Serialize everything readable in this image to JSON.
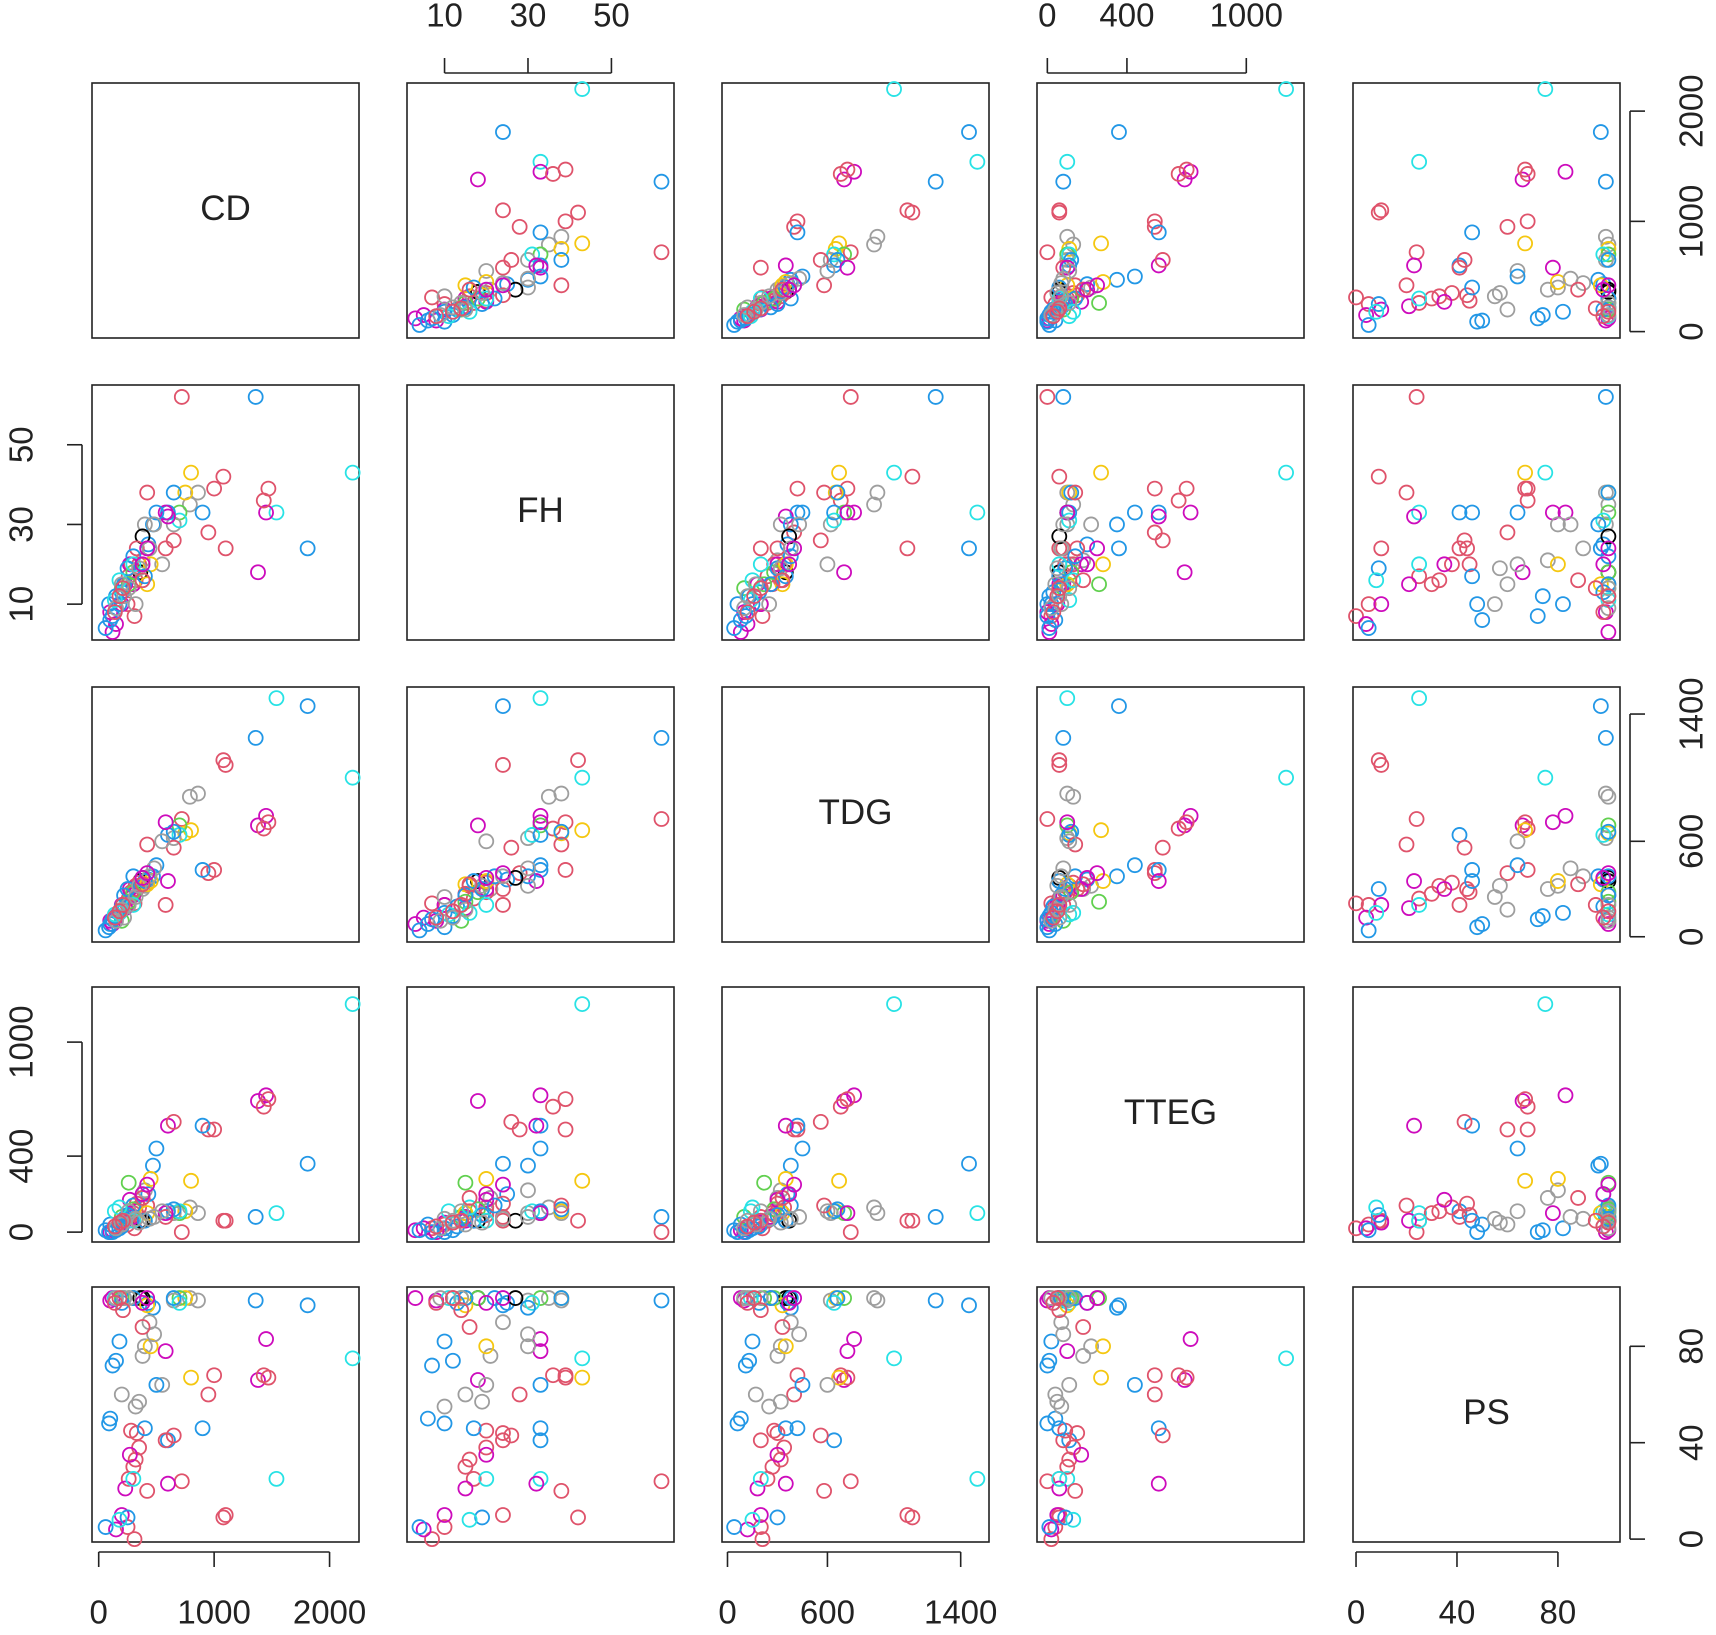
{
  "chart_data": {
    "type": "pairs",
    "variables": [
      {
        "name": "CD",
        "lim": [
          -58,
          2255
        ],
        "ticks": [
          0,
          1000,
          2000
        ]
      },
      {
        "name": "FH",
        "lim": [
          1,
          65
        ],
        "ticks": [
          10,
          30,
          50
        ]
      },
      {
        "name": "TDG",
        "lim": [
          -33,
          1570
        ],
        "ticks": [
          0,
          600,
          1400
        ]
      },
      {
        "name": "TTEG",
        "lim": [
          -52,
          1290
        ],
        "ticks": [
          0,
          400,
          1000
        ]
      },
      {
        "name": "PS",
        "lim": [
          -1.2,
          104.6
        ],
        "ticks": [
          0,
          40,
          80
        ]
      }
    ],
    "observations": [
      [
        2200,
        43,
        1000,
        1200,
        75
      ],
      [
        1810,
        24,
        1450,
        360,
        97
      ],
      [
        1540,
        33,
        1500,
        100,
        25
      ],
      [
        1360,
        62,
        1250,
        80,
        99
      ],
      [
        720,
        62,
        740,
        0,
        24
      ],
      [
        1450,
        33,
        760,
        720,
        83
      ],
      [
        1380,
        18,
        700,
        690,
        66
      ],
      [
        1470,
        39,
        720,
        700,
        67
      ],
      [
        1430,
        36,
        680,
        660,
        68
      ],
      [
        1100,
        24,
        1080,
        60,
        10
      ],
      [
        1080,
        42,
        1110,
        60,
        9
      ],
      [
        1000,
        39,
        420,
        540,
        68
      ],
      [
        950,
        28,
        400,
        540,
        60
      ],
      [
        860,
        38,
        900,
        100,
        99
      ],
      [
        790,
        35,
        880,
        130,
        100
      ],
      [
        800,
        43,
        670,
        270,
        67
      ],
      [
        750,
        38,
        650,
        110,
        100
      ],
      [
        700,
        33,
        700,
        100,
        100
      ],
      [
        650,
        30,
        620,
        100,
        99
      ],
      [
        700,
        31,
        640,
        110,
        98
      ],
      [
        650,
        38,
        660,
        120,
        100
      ],
      [
        600,
        33,
        640,
        110,
        41
      ],
      [
        900,
        33,
        420,
        560,
        46
      ],
      [
        580,
        24,
        200,
        80,
        41
      ],
      [
        600,
        32,
        350,
        560,
        23
      ],
      [
        650,
        26,
        560,
        580,
        43
      ],
      [
        420,
        38,
        580,
        140,
        20
      ],
      [
        580,
        33,
        720,
        100,
        78
      ],
      [
        550,
        20,
        600,
        110,
        64
      ],
      [
        500,
        33,
        450,
        440,
        64
      ],
      [
        470,
        30,
        380,
        350,
        96
      ],
      [
        430,
        25,
        360,
        200,
        98
      ],
      [
        400,
        30,
        320,
        220,
        80
      ],
      [
        380,
        21,
        300,
        180,
        76
      ],
      [
        380,
        27,
        370,
        60,
        100
      ],
      [
        360,
        18,
        350,
        60,
        100
      ],
      [
        350,
        20,
        340,
        130,
        38
      ],
      [
        330,
        24,
        300,
        150,
        44
      ],
      [
        320,
        16,
        320,
        110,
        33
      ],
      [
        300,
        15,
        270,
        100,
        30
      ],
      [
        280,
        20,
        280,
        90,
        45
      ],
      [
        260,
        17,
        240,
        60,
        25
      ],
      [
        250,
        10,
        200,
        40,
        5
      ],
      [
        310,
        7,
        210,
        20,
        0
      ],
      [
        270,
        20,
        300,
        170,
        35
      ],
      [
        230,
        15,
        180,
        60,
        21
      ],
      [
        200,
        10,
        200,
        50,
        10
      ],
      [
        150,
        5,
        120,
        20,
        4
      ],
      [
        120,
        3,
        80,
        10,
        100
      ],
      [
        100,
        8,
        100,
        0,
        99
      ],
      [
        300,
        15,
        260,
        80,
        100
      ],
      [
        260,
        15,
        220,
        260,
        100
      ],
      [
        300,
        18,
        280,
        120,
        100
      ],
      [
        200,
        14,
        100,
        80,
        100
      ],
      [
        420,
        15,
        330,
        100,
        97
      ],
      [
        450,
        20,
        350,
        280,
        80
      ],
      [
        200,
        13,
        190,
        30,
        98
      ],
      [
        180,
        10,
        150,
        20,
        82
      ],
      [
        150,
        12,
        130,
        10,
        74
      ],
      [
        120,
        7,
        110,
        0,
        72
      ],
      [
        100,
        6,
        80,
        40,
        50
      ],
      [
        90,
        10,
        60,
        0,
        48
      ],
      [
        60,
        4,
        40,
        10,
        5
      ],
      [
        220,
        15,
        260,
        70,
        100
      ],
      [
        250,
        19,
        300,
        90,
        9
      ],
      [
        300,
        22,
        380,
        140,
        100
      ],
      [
        400,
        17,
        350,
        60,
        46
      ],
      [
        180,
        16,
        150,
        130,
        8
      ],
      [
        140,
        11,
        140,
        110,
        100
      ],
      [
        300,
        20,
        200,
        60,
        25
      ],
      [
        220,
        12,
        120,
        60,
        100
      ],
      [
        260,
        14,
        200,
        110,
        100
      ],
      [
        320,
        10,
        250,
        70,
        55
      ],
      [
        350,
        19,
        320,
        50,
        57
      ],
      [
        200,
        15,
        170,
        40,
        60
      ],
      [
        150,
        9,
        100,
        20,
        100
      ],
      [
        440,
        24,
        380,
        70,
        90
      ],
      [
        480,
        30,
        430,
        80,
        85
      ],
      [
        180,
        12,
        160,
        50,
        100
      ],
      [
        210,
        14,
        200,
        60,
        95
      ],
      [
        140,
        8,
        120,
        30,
        98
      ],
      [
        380,
        16,
        330,
        180,
        88
      ],
      [
        380,
        20,
        370,
        200,
        98
      ],
      [
        420,
        24,
        400,
        250,
        100
      ]
    ],
    "colors": [
      "#28E2E5",
      "#2297E6",
      "#28E2E5",
      "#2297E6",
      "#DF536B",
      "#CD0BBC",
      "#CD0BBC",
      "#DF536B",
      "#DF536B",
      "#DF536B",
      "#DF536B",
      "#DF536B",
      "#DF536B",
      "#9E9E9E",
      "#9E9E9E",
      "#F5C710",
      "#F5C710",
      "#61D04F",
      "#9E9E9E",
      "#28E2E5",
      "#2297E6",
      "#2297E6",
      "#2297E6",
      "#DF536B",
      "#CD0BBC",
      "#DF536B",
      "#DF536B",
      "#CD0BBC",
      "#9E9E9E",
      "#2297E6",
      "#2297E6",
      "#2297E6",
      "#9E9E9E",
      "#9E9E9E",
      "#000000",
      "#000000",
      "#DF536B",
      "#DF536B",
      "#DF536B",
      "#DF536B",
      "#DF536B",
      "#DF536B",
      "#DF536B",
      "#DF536B",
      "#CD0BBC",
      "#CD0BBC",
      "#CD0BBC",
      "#CD0BBC",
      "#CD0BBC",
      "#CD0BBC",
      "#CD0BBC",
      "#61D04F",
      "#61D04F",
      "#61D04F",
      "#F5C710",
      "#F5C710",
      "#2297E6",
      "#2297E6",
      "#2297E6",
      "#2297E6",
      "#2297E6",
      "#2297E6",
      "#2297E6",
      "#2297E6",
      "#2297E6",
      "#2297E6",
      "#2297E6",
      "#28E2E5",
      "#28E2E5",
      "#28E2E5",
      "#9E9E9E",
      "#9E9E9E",
      "#9E9E9E",
      "#9E9E9E",
      "#9E9E9E",
      "#9E9E9E",
      "#9E9E9E",
      "#9E9E9E",
      "#DF536B",
      "#DF536B",
      "#DF536B",
      "#DF536B",
      "#CD0BBC",
      "#CD0BBC"
    ]
  }
}
